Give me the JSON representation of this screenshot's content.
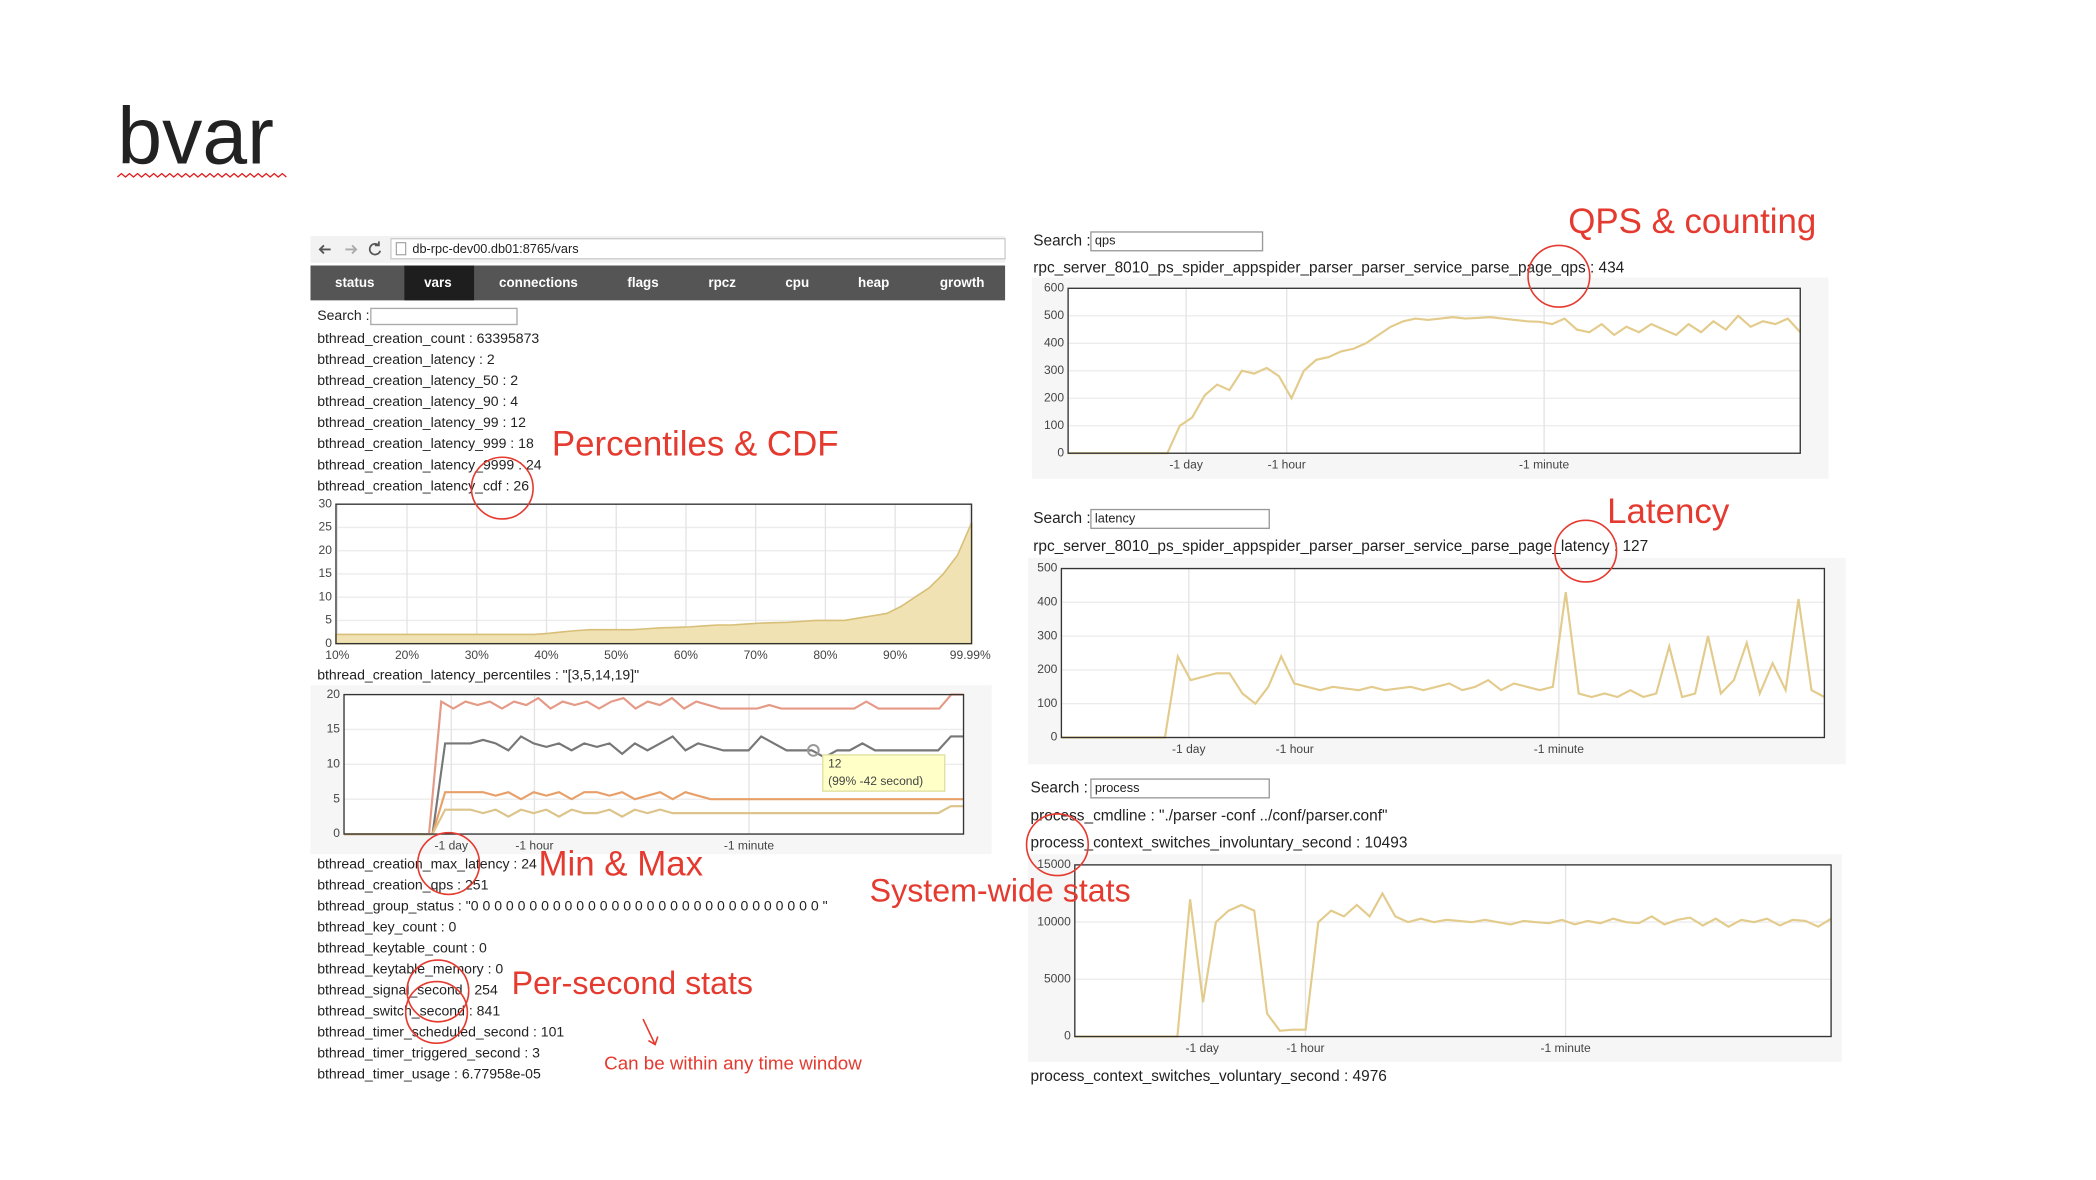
{
  "title": "bvar",
  "annotation_color": "#e53a2f",
  "browser": {
    "url": "db-rpc-dev00.db01:8765/vars",
    "tabs": [
      "status",
      "vars",
      "connections",
      "flags",
      "rpcz",
      "cpu",
      "heap",
      "growth"
    ],
    "active_tab": 1
  },
  "left": {
    "search_label": "Search :",
    "vars_top": [
      "bthread_creation_count : 63395873",
      "bthread_creation_latency : 2",
      "bthread_creation_latency_50 : 2",
      "bthread_creation_latency_90 : 4",
      "bthread_creation_latency_99 : 12",
      "bthread_creation_latency_999 : 18",
      "bthread_creation_latency_9999 : 24",
      "bthread_creation_latency_cdf : 26"
    ],
    "percentiles_line": "bthread_creation_latency_percentiles : \"[3,5,14,19]\"",
    "vars_bottom": [
      "bthread_creation_max_latency : 24",
      "bthread_creation_qps : 251",
      "bthread_group_status : \"0 0 0 0 0 0 0 0 0 0 0 0 0 0 0 0 0 0 0 0 0 0 0 0 0 0 0 0 0 0 \"",
      "bthread_key_count : 0",
      "bthread_keytable_count : 0",
      "bthread_keytable_memory : 0",
      "bthread_signal_second : 254",
      "bthread_switch_second : 841",
      "bthread_timer_scheduled_second : 101",
      "bthread_timer_triggered_second : 3",
      "bthread_timer_usage : 6.77958e-05"
    ]
  },
  "right": [
    {
      "search_label": "Search :",
      "query": "qps",
      "lines": [
        "rpc_server_8010_ps_spider_appspider_parser_parser_service_parse_page_qps : 434"
      ],
      "after": []
    },
    {
      "search_label": "Search :",
      "query": "latency",
      "lines": [
        "rpc_server_8010_ps_spider_appspider_parser_parser_service_parse_page_latency : 127"
      ],
      "after": []
    },
    {
      "search_label": "Search :",
      "query": "process",
      "lines": [
        "process_cmdline : \"./parser -conf ../conf/parser.conf\"",
        "process_context_switches_involuntary_second : 10493"
      ],
      "after": [
        "process_context_switches_voluntary_second : 4976"
      ]
    }
  ],
  "charts": [
    {
      "type": "area",
      "ylim": [
        0,
        30
      ],
      "yticks": [
        0,
        5,
        10,
        15,
        20,
        25,
        30
      ],
      "xticks": [
        "10%",
        "20%",
        "30%",
        "40%",
        "50%",
        "60%",
        "70%",
        "80%",
        "90%",
        "99.99%"
      ],
      "series": [
        {
          "color": "#d8bf78",
          "fill": "#f1e2b4",
          "values": [
            2,
            2,
            2,
            2,
            2,
            2,
            2,
            2,
            2,
            2,
            2,
            2,
            2,
            2,
            2,
            2.2,
            2.5,
            2.8,
            3,
            3,
            3,
            3,
            3.2,
            3.4,
            3.5,
            3.6,
            3.8,
            4,
            4,
            4.2,
            4.4,
            4.5,
            4.6,
            4.8,
            5,
            5,
            5,
            5.5,
            6,
            6.5,
            8,
            10,
            12,
            15,
            19,
            26
          ]
        }
      ]
    },
    {
      "type": "line",
      "ylim": [
        0,
        20
      ],
      "yticks": [
        0,
        5,
        10,
        15,
        20
      ],
      "xticks": [
        "-1 day",
        "-1 hour",
        "-1 minute"
      ],
      "tooltip": {
        "value": 12,
        "text": "(99% -42 second)"
      },
      "series": [
        {
          "color": "#e49a86",
          "values": [
            0,
            0,
            0,
            0,
            0,
            0,
            0,
            0,
            19,
            18,
            19,
            18.5,
            19,
            18,
            19,
            18.5,
            19.5,
            18,
            19,
            18.5,
            19,
            18,
            19,
            19.5,
            18,
            19,
            18.5,
            19.5,
            18,
            19,
            18.5,
            18,
            18,
            18,
            18,
            18.5,
            18,
            18,
            18,
            18,
            18,
            18,
            18,
            19,
            18,
            18,
            18,
            18,
            18,
            18,
            20,
            20
          ]
        },
        {
          "color": "#777777",
          "values": [
            0,
            0,
            0,
            0,
            0,
            0,
            0,
            0,
            13,
            13,
            13,
            13.5,
            13,
            12,
            14,
            13,
            12.5,
            13,
            12,
            13,
            12.5,
            13,
            11.5,
            13,
            12,
            13,
            14,
            12,
            13,
            12.5,
            12,
            12,
            12,
            14,
            13,
            12,
            12,
            12,
            11,
            12,
            12,
            13,
            12,
            12,
            12,
            12,
            12,
            12,
            14,
            14
          ]
        },
        {
          "color": "#e8a06a",
          "values": [
            0,
            0,
            0,
            0,
            0,
            0,
            0,
            0,
            6,
            6,
            6,
            6,
            5.5,
            6,
            5,
            6,
            5.5,
            6,
            5,
            6,
            6,
            5.5,
            6,
            5,
            5.5,
            6,
            5,
            6,
            5.5,
            5,
            5,
            5,
            5,
            5,
            5,
            5,
            5,
            5,
            5,
            5,
            5,
            5,
            5,
            5,
            5,
            5,
            5,
            5,
            5,
            5
          ]
        },
        {
          "color": "#dcc48a",
          "values": [
            0,
            0,
            0,
            0,
            0,
            0,
            0,
            0,
            3.5,
            3.5,
            3.5,
            3,
            3.5,
            2.5,
            3.5,
            3,
            3.5,
            2.5,
            3.5,
            3,
            3,
            3.5,
            2.5,
            3.5,
            3,
            3.5,
            3,
            3,
            3,
            3,
            3,
            3,
            3,
            3,
            3,
            3,
            3,
            3,
            3,
            3,
            3,
            3,
            3,
            3,
            3,
            3,
            3,
            3,
            4,
            4
          ]
        }
      ]
    },
    {
      "type": "line",
      "ylim": [
        0,
        600
      ],
      "yticks": [
        0,
        100,
        200,
        300,
        400,
        500,
        600
      ],
      "xticks": [
        "-1 day",
        "-1 hour",
        "-1 minute"
      ],
      "series": [
        {
          "color": "#e3cb8c",
          "values": [
            0,
            0,
            0,
            0,
            0,
            0,
            0,
            0,
            0,
            100,
            130,
            210,
            250,
            230,
            300,
            290,
            310,
            280,
            200,
            300,
            340,
            350,
            370,
            380,
            400,
            430,
            460,
            480,
            490,
            485,
            490,
            495,
            490,
            492,
            495,
            490,
            485,
            480,
            478,
            470,
            490,
            450,
            440,
            470,
            430,
            460,
            440,
            470,
            450,
            430,
            470,
            440,
            480,
            450,
            500,
            460,
            480,
            470,
            490,
            440
          ]
        }
      ]
    },
    {
      "type": "line",
      "ylim": [
        0,
        500
      ],
      "yticks": [
        0,
        100,
        200,
        300,
        400,
        500
      ],
      "xticks": [
        "-1 day",
        "-1 hour",
        "-1 minute"
      ],
      "series": [
        {
          "color": "#e3cb8c",
          "values": [
            0,
            0,
            0,
            0,
            0,
            0,
            0,
            0,
            0,
            240,
            170,
            180,
            190,
            190,
            130,
            100,
            150,
            240,
            160,
            150,
            140,
            150,
            145,
            140,
            150,
            140,
            145,
            150,
            140,
            150,
            160,
            140,
            150,
            170,
            140,
            160,
            150,
            140,
            150,
            430,
            130,
            120,
            130,
            120,
            140,
            120,
            130,
            270,
            120,
            130,
            300,
            130,
            170,
            280,
            130,
            220,
            140,
            410,
            140,
            120
          ]
        }
      ]
    },
    {
      "type": "line",
      "ylim": [
        0,
        15000
      ],
      "yticks": [
        0,
        5000,
        10000,
        15000
      ],
      "xticks": [
        "-1 day",
        "-1 hour",
        "-1 minute"
      ],
      "series": [
        {
          "color": "#e3cb8c",
          "values": [
            0,
            0,
            0,
            0,
            0,
            0,
            0,
            0,
            0,
            12000,
            3000,
            10000,
            11000,
            11500,
            11000,
            2000,
            500,
            600,
            600,
            10000,
            11000,
            10500,
            11500,
            10500,
            12500,
            10500,
            10000,
            10300,
            10000,
            10200,
            10100,
            10000,
            10200,
            10000,
            9800,
            10100,
            10000,
            9900,
            10200,
            9800,
            10100,
            9900,
            10300,
            10000,
            9900,
            10500,
            9800,
            10200,
            10400,
            9700,
            10300,
            9600,
            10200,
            10000,
            10300,
            9700,
            10200,
            10100,
            9600,
            10300
          ]
        }
      ]
    }
  ],
  "annotations": [
    "QPS & counting",
    "Percentiles & CDF",
    "Latency",
    "Min & Max",
    "System-wide stats",
    "Per-second stats",
    "Can be within any time window"
  ]
}
